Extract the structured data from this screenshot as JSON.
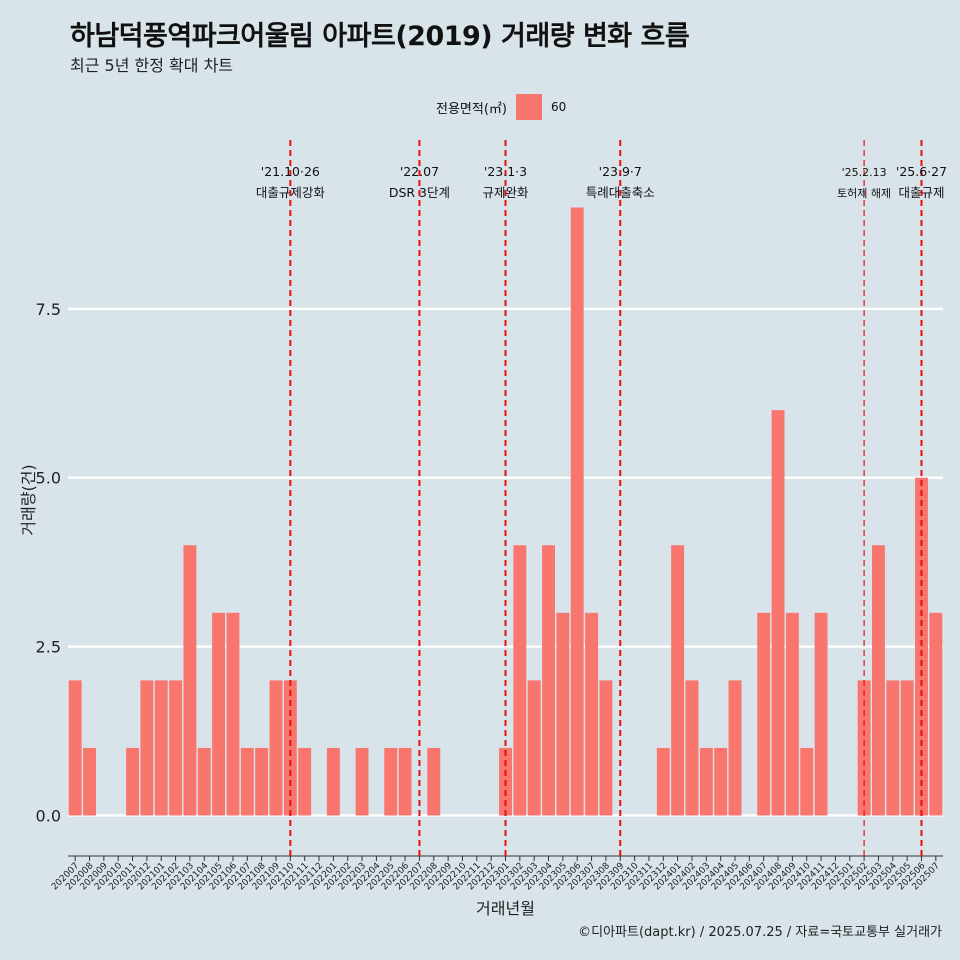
{
  "title": "하남덕풍역파크어울림 아파트(2019) 거래량 변화 흐름",
  "subtitle": "최근 5년 한정 확대 차트",
  "legend": {
    "title": "전용면적(㎡)",
    "items": [
      {
        "label": "60",
        "color": "#f8766d"
      }
    ]
  },
  "caption": "©디아파트(dapt.kr) / 2025.07.25 / 자료=국토교통부 실거래가",
  "chart_data": {
    "type": "bar",
    "title": "하남덕풍역파크어울림 아파트(2019) 거래량 변화 흐름",
    "xlabel": "거래년월",
    "ylabel": "거래량(건)",
    "ylim": [
      -0.6,
      10.0
    ],
    "yticks": [
      0.0,
      2.5,
      5.0,
      7.5
    ],
    "ytick_labels": [
      "0.0",
      "2.5",
      "5.0",
      "7.5"
    ],
    "grid": "horizontal",
    "legend_position": "top",
    "bar_color": "#f8766d",
    "categories": [
      "202007",
      "202008",
      "202009",
      "202010",
      "202011",
      "202012",
      "202101",
      "202102",
      "202103",
      "202104",
      "202105",
      "202106",
      "202107",
      "202108",
      "202109",
      "202110",
      "202111",
      "202112",
      "202201",
      "202202",
      "202203",
      "202204",
      "202205",
      "202206",
      "202207",
      "202208",
      "202209",
      "202210",
      "202211",
      "202212",
      "202301",
      "202302",
      "202303",
      "202304",
      "202305",
      "202306",
      "202307",
      "202308",
      "202309",
      "202310",
      "202311",
      "202312",
      "202401",
      "202402",
      "202403",
      "202404",
      "202405",
      "202406",
      "202407",
      "202408",
      "202409",
      "202410",
      "202411",
      "202412",
      "202501",
      "202502",
      "202503",
      "202504",
      "202505",
      "202506",
      "202507"
    ],
    "series": [
      {
        "name": "60",
        "values": [
          2,
          1,
          0,
          0,
          1,
          2,
          2,
          2,
          4,
          1,
          3,
          3,
          1,
          1,
          2,
          2,
          1,
          0,
          1,
          0,
          1,
          0,
          1,
          1,
          0,
          1,
          0,
          0,
          0,
          0,
          1,
          4,
          2,
          4,
          3,
          9,
          3,
          2,
          0,
          0,
          0,
          1,
          4,
          2,
          1,
          1,
          2,
          0,
          3,
          6,
          3,
          1,
          3,
          0,
          0,
          2,
          4,
          2,
          2,
          5,
          3
        ]
      }
    ],
    "annotations": [
      {
        "category": "202110",
        "date": "'21.10·26",
        "label": "대출규제강화",
        "style": "thick"
      },
      {
        "category": "202207",
        "date": "'22.07",
        "label": "DSR 3단계",
        "style": "thick"
      },
      {
        "category": "202301",
        "date": "'23.1·3",
        "label": "규제완화",
        "style": "thick"
      },
      {
        "category": "202309",
        "date": "'23.9·7",
        "label": "특례대출축소",
        "style": "thick"
      },
      {
        "category": "202502",
        "date": "'25.2.13",
        "label": "토허제 해제",
        "style": "thin"
      },
      {
        "category": "202506",
        "date": "'25.6·27",
        "label": "대출규제",
        "style": "thick"
      }
    ]
  }
}
